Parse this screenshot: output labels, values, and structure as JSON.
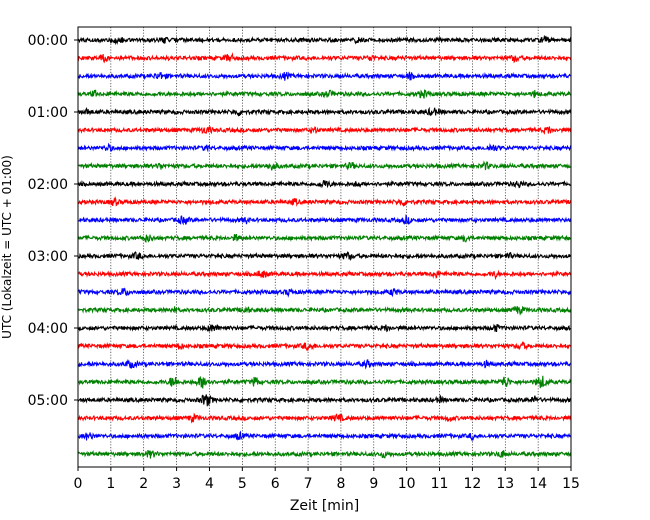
{
  "chart_data": {
    "type": "line",
    "title": "",
    "xlabel": "Zeit  [min]",
    "ylabel": "UTC (Lokalzeit = UTC + 01:00)",
    "xlim": [
      0,
      15
    ],
    "x_ticks": [
      "0",
      "1",
      "2",
      "3",
      "4",
      "5",
      "6",
      "7",
      "8",
      "9",
      "10",
      "11",
      "12",
      "13",
      "14",
      "15"
    ],
    "y_ticks": [
      "00:00",
      "01:00",
      "02:00",
      "03:00",
      "04:00",
      "05:00"
    ],
    "grid": "vertical dotted lines at each minute",
    "trace_duration_min": 15,
    "trace_count": 24,
    "traces": [
      "00:00",
      "00:15",
      "00:30",
      "00:45",
      "01:00",
      "01:15",
      "01:30",
      "01:45",
      "02:00",
      "02:15",
      "02:30",
      "02:45",
      "03:00",
      "03:15",
      "03:30",
      "03:45",
      "04:00",
      "04:15",
      "04:30",
      "04:45",
      "05:00",
      "05:15",
      "05:30",
      "05:45"
    ],
    "trace_colors": [
      "#000000",
      "#ff0000",
      "#0000ff",
      "#008000"
    ],
    "bursts": [
      {
        "trace": 0,
        "minutes": [
          8.5,
          14.2,
          1.2,
          2.6
        ]
      },
      {
        "trace": 1,
        "minutes": [
          0.8,
          4.6,
          8.9,
          13.3
        ]
      },
      {
        "trace": 2,
        "minutes": [
          2.5,
          10.1,
          6.3
        ]
      },
      {
        "trace": 3,
        "minutes": [
          0.5,
          7.6,
          10.5,
          13.9
        ]
      },
      {
        "trace": 4,
        "minutes": [
          4.9,
          10.8,
          0.3
        ]
      },
      {
        "trace": 5,
        "minutes": [
          3.9,
          7.2,
          14.3
        ]
      },
      {
        "trace": 6,
        "minutes": [
          3.9,
          0.9,
          12.6
        ]
      },
      {
        "trace": 7,
        "minutes": [
          8.3,
          5.9,
          2.5,
          12.4
        ]
      },
      {
        "trace": 8,
        "minutes": [
          7.5,
          8.5,
          13.4
        ]
      },
      {
        "trace": 9,
        "minutes": [
          6.6,
          1.1,
          9.9
        ]
      },
      {
        "trace": 10,
        "minutes": [
          10.0,
          3.2,
          5.1
        ]
      },
      {
        "trace": 11,
        "minutes": [
          2.1,
          4.8,
          11.8
        ]
      },
      {
        "trace": 12,
        "minutes": [
          13.1,
          1.8,
          8.2
        ]
      },
      {
        "trace": 13,
        "minutes": [
          10.9,
          5.6,
          12.7
        ]
      },
      {
        "trace": 14,
        "minutes": [
          1.4,
          6.4,
          9.6
        ]
      },
      {
        "trace": 15,
        "minutes": [
          2.9,
          5.1,
          13.4
        ]
      },
      {
        "trace": 16,
        "minutes": [
          12.7,
          4.1,
          9.4
        ]
      },
      {
        "trace": 17,
        "minutes": [
          7.0,
          3.1,
          13.5
        ]
      },
      {
        "trace": 18,
        "minutes": [
          12.4,
          8.8,
          1.6
        ]
      },
      {
        "trace": 19,
        "minutes": [
          2.9,
          3.8,
          5.4,
          13.0,
          14.1
        ]
      },
      {
        "trace": 20,
        "minutes": [
          3.9,
          11.0,
          13.9
        ]
      },
      {
        "trace": 21,
        "minutes": [
          11.3,
          3.5,
          7.9
        ]
      },
      {
        "trace": 22,
        "minutes": [
          4.9,
          0.3,
          12.0
        ]
      },
      {
        "trace": 23,
        "minutes": [
          2.2,
          9.3,
          12.9
        ]
      }
    ]
  }
}
